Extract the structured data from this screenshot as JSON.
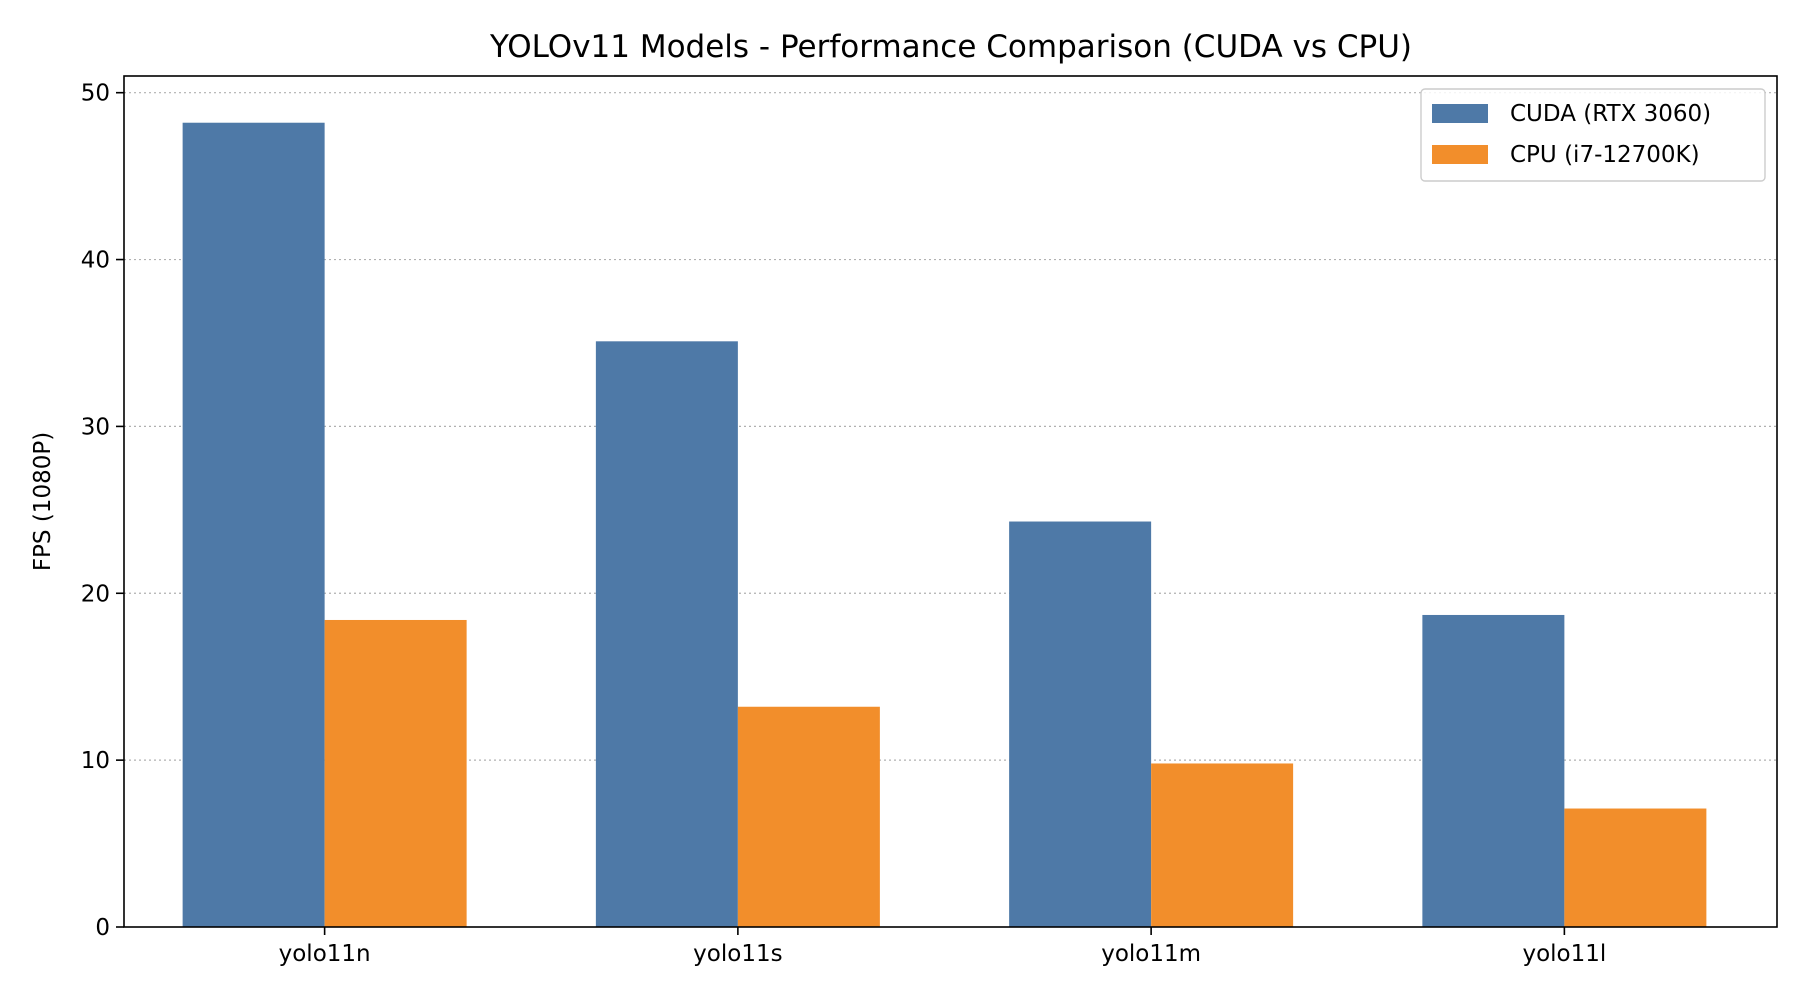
{
  "chart_data": {
    "type": "bar",
    "title": "YOLOv11 Models - Performance Comparison (CUDA vs CPU)",
    "xlabel": "",
    "ylabel": "FPS (1080P)",
    "categories": [
      "yolo11n",
      "yolo11s",
      "yolo11m",
      "yolo11l"
    ],
    "series": [
      {
        "name": "CUDA (RTX 3060)",
        "values": [
          48.2,
          35.1,
          24.3,
          18.7
        ],
        "color": "#4e79a7"
      },
      {
        "name": "CPU (i7-12700K)",
        "values": [
          18.4,
          13.2,
          9.8,
          7.1
        ],
        "color": "#f28e2b"
      }
    ],
    "ylim": [
      0,
      51
    ],
    "yticks": [
      0,
      10,
      20,
      30,
      40,
      50
    ],
    "grid": true,
    "legend_position": "top-right"
  }
}
